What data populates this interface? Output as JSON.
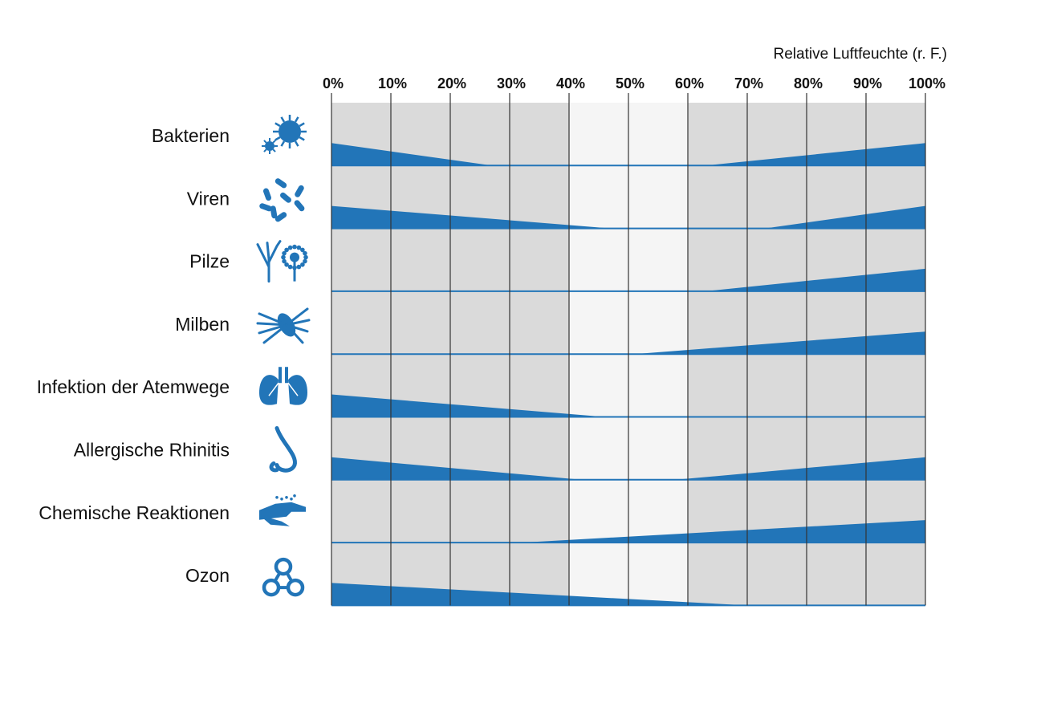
{
  "chart_data": {
    "type": "area",
    "x_axis_title": "Relative Luftfeuchte (r. F.)",
    "x_ticks": [
      "0%",
      "10%",
      "20%",
      "30%",
      "40%",
      "50%",
      "60%",
      "70%",
      "80%",
      "90%",
      "100%"
    ],
    "xlim": [
      0,
      100
    ],
    "optimal_zone": [
      40,
      60
    ],
    "colors": {
      "fill": "#2275b8",
      "background": "#dadada",
      "optimal_background": "#f5f5f5",
      "gridline": "#333333"
    },
    "rows": [
      {
        "label": "Bakterien",
        "icon": "bacteria-icon",
        "points": [
          [
            0,
            1.0
          ],
          [
            27,
            0.0
          ],
          [
            63,
            0.0
          ],
          [
            100,
            1.0
          ]
        ]
      },
      {
        "label": "Viren",
        "icon": "virus-icon",
        "points": [
          [
            0,
            1.0
          ],
          [
            47,
            0.0
          ],
          [
            73,
            0.0
          ],
          [
            100,
            1.0
          ]
        ]
      },
      {
        "label": "Pilze",
        "icon": "fungi-icon",
        "points": [
          [
            0,
            0.0
          ],
          [
            63,
            0.0
          ],
          [
            100,
            1.0
          ]
        ]
      },
      {
        "label": "Milben",
        "icon": "mite-icon",
        "points": [
          [
            0,
            0.0
          ],
          [
            51,
            0.0
          ],
          [
            100,
            1.0
          ]
        ]
      },
      {
        "label": "Infektion der Atemwege",
        "icon": "lungs-icon",
        "points": [
          [
            0,
            1.0
          ],
          [
            46,
            0.0
          ],
          [
            100,
            0.0
          ]
        ]
      },
      {
        "label": "Allergische Rhinitis",
        "icon": "nose-icon",
        "points": [
          [
            0,
            1.0
          ],
          [
            42,
            0.0
          ],
          [
            58,
            0.0
          ],
          [
            100,
            1.0
          ]
        ]
      },
      {
        "label": "Chemische Reaktionen",
        "icon": "hand-chemical-icon",
        "points": [
          [
            0,
            0.0
          ],
          [
            32,
            0.0
          ],
          [
            100,
            1.0
          ]
        ]
      },
      {
        "label": "Ozon",
        "icon": "ozone-molecule-icon",
        "points": [
          [
            0,
            1.0
          ],
          [
            70,
            0.0
          ],
          [
            100,
            0.0
          ]
        ]
      }
    ]
  }
}
